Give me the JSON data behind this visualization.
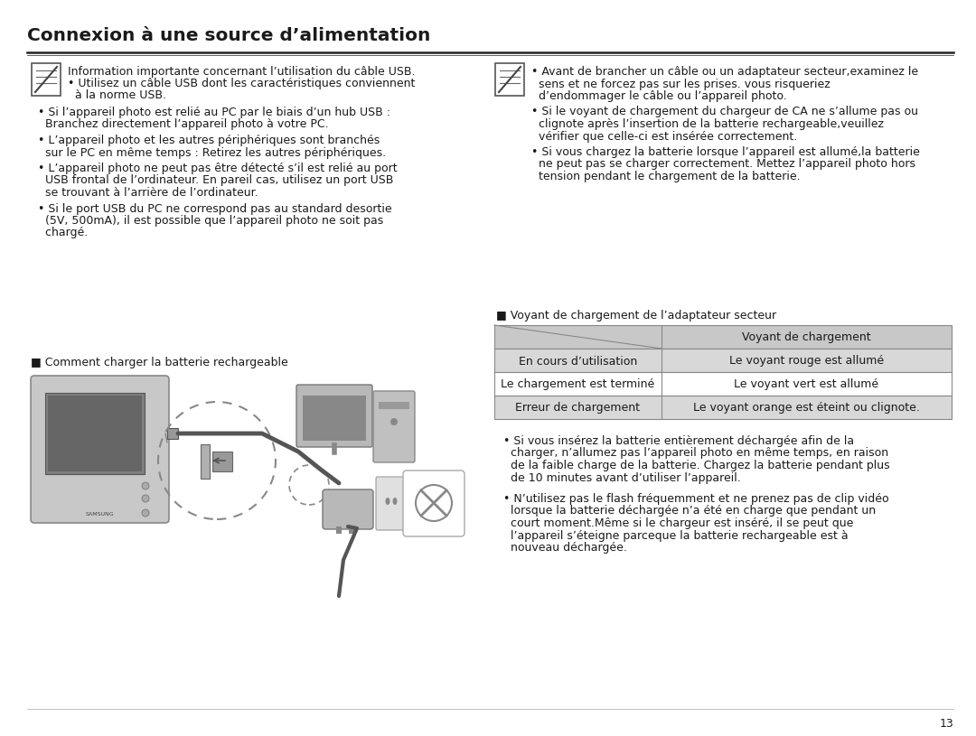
{
  "title": "Connexion à une source d’alimentation",
  "page_number": "13",
  "bg": "#ffffff",
  "text_color": "#1a1a1a",
  "border_color": "#333333",
  "table_header_bg": "#c8c8c8",
  "table_row1_bg": "#d8d8d8",
  "table_row2_bg": "#ffffff",
  "table_row3_bg": "#d8d8d8",
  "table_border": "#888888",
  "left_note_line1": "Information importante concernant l’utilisation du câble USB.",
  "left_note_line2": "• Utilisez un câble USB dont les caractéristiques conviennent",
  "left_note_line3": "  à la norme USB.",
  "left_bullets": [
    [
      "• Si l’appareil photo est relié au PC par le biais d’un hub USB :",
      "  Branchez directement l’appareil photo à votre PC."
    ],
    [
      "• L’appareil photo et les autres périphériques sont branchés",
      "  sur le PC en même temps : Retirez les autres périphériques."
    ],
    [
      "• L’appareil photo ne peut pas être détecté s’il est relié au port",
      "  USB frontal de l’ordinateur. En pareil cas, utilisez un port USB",
      "  se trouvant à l’arrière de l’ordinateur."
    ],
    [
      "• Si le port USB du PC ne correspond pas au standard desortie",
      "  (5V, 500mA), il est possible que l’appareil photo ne soit pas",
      "  chargé."
    ]
  ],
  "section_label": "■ Comment charger la batterie rechargeable",
  "right_note_bullets": [
    [
      "• Avant de brancher un câble ou un adaptateur secteur,examinez le",
      "  sens et ne forcez pas sur les prises. vous risqueriez",
      "  d’endommager le câble ou l’appareil photo."
    ],
    [
      "• Si le voyant de chargement du chargeur de CA ne s’allume pas ou",
      "  clignote après l’insertion de la batterie rechargeable,veuillez",
      "  vérifier que celle-ci est insérée correctement."
    ],
    [
      "• Si vous chargez la batterie lorsque l’appareil est allumé,la batterie",
      "  ne peut pas se charger correctement. Mettez l’appareil photo hors",
      "  tension pendant le chargement de la batterie."
    ]
  ],
  "table_label": "■ Voyant de chargement de l’adaptateur secteur",
  "table_header_right": "Voyant de chargement",
  "table_rows": [
    [
      "En cours d’utilisation",
      "Le voyant rouge est allumé"
    ],
    [
      "Le chargement est terminé",
      "Le voyant vert est allumé"
    ],
    [
      "Erreur de chargement",
      "Le voyant orange est éteint ou clignote."
    ]
  ],
  "bullets2": [
    [
      "• Si vous insérez la batterie entièrement déchargée afin de la",
      "  charger, n’allumez pas l’appareil photo en même temps, en raison",
      "  de la faible charge de la batterie. Chargez la batterie pendant plus",
      "  de 10 minutes avant d’utiliser l’appareil."
    ],
    [
      "• N’utilisez pas le flash fréquemment et ne prenez pas de clip vidéo",
      "  lorsque la batterie déchargée n’a été en charge que pendant un",
      "  court moment.Même si le chargeur est inséré, il se peut que",
      "  l’appareil s’éteigne parceque la batterie rechargeable est à",
      "  nouveau déchargée."
    ]
  ]
}
